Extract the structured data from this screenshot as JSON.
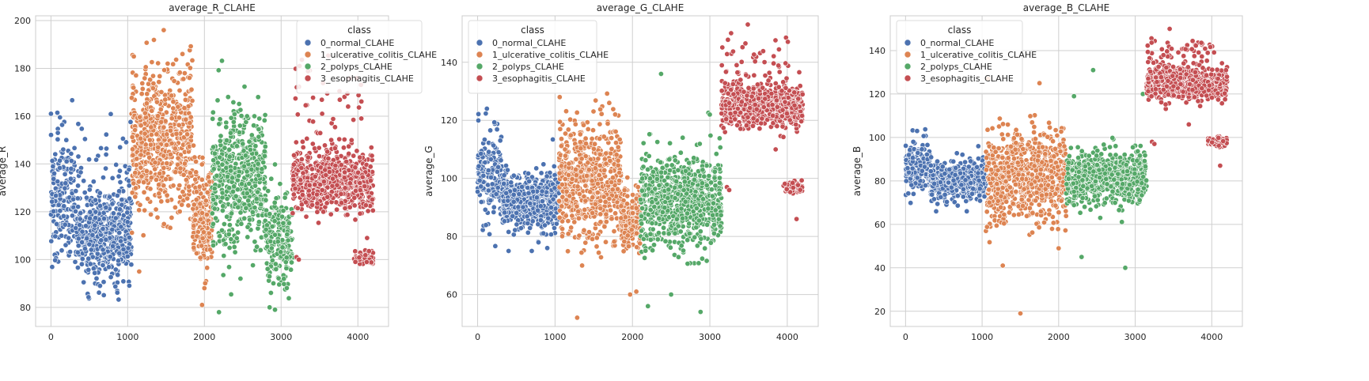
{
  "chart_data": [
    {
      "type": "scatter",
      "title": "average_R_CLAHE",
      "xlabel": "",
      "ylabel": "average_R",
      "xlim": [
        -200,
        4400
      ],
      "ylim": [
        72,
        202
      ],
      "xticks": [
        0,
        1000,
        2000,
        3000,
        4000
      ],
      "yticks": [
        80,
        100,
        120,
        140,
        160,
        180,
        200
      ],
      "grid": true,
      "legend": {
        "title": "class",
        "placement": "top-right"
      },
      "series": [
        {
          "name": "0_normal_CLAHE",
          "clusters": [
            {
              "x": [
                0,
                320
              ],
              "y_center": 125,
              "y_spread": 14,
              "count": 170
            },
            {
              "x": [
                320,
                1050
              ],
              "y_center": 110,
              "y_spread": 10,
              "count": 480
            },
            {
              "x": [
                320,
                1050
              ],
              "y_center": 130,
              "y_spread": 14,
              "count": 40
            }
          ],
          "outliers": [
            [
              0,
              161
            ],
            [
              90,
              153
            ],
            [
              200,
              150
            ],
            [
              640,
              89
            ],
            [
              900,
              147
            ]
          ]
        },
        {
          "name": "1_ulcerative_colitis_CLAHE",
          "clusters": [
            {
              "x": [
                1050,
                1850
              ],
              "y_center": 150,
              "y_spread": 15,
              "count": 600
            },
            {
              "x": [
                1850,
                2100
              ],
              "y_center": 118,
              "y_spread": 10,
              "count": 220
            }
          ],
          "outliers": [
            [
              1080,
              185
            ],
            [
              1470,
              196
            ],
            [
              1970,
              81
            ],
            [
              1150,
              95
            ],
            [
              2000,
              88
            ]
          ]
        },
        {
          "name": "2_polyps_CLAHE",
          "clusters": [
            {
              "x": [
                2100,
                2800
              ],
              "y_center": 133,
              "y_spread": 14,
              "count": 520
            },
            {
              "x": [
                2800,
                3150
              ],
              "y_center": 108,
              "y_spread": 10,
              "count": 200
            }
          ],
          "outliers": [
            [
              2190,
              78
            ],
            [
              2850,
              80
            ],
            [
              2920,
              79
            ],
            [
              2470,
              92
            ],
            [
              2700,
              168
            ]
          ]
        },
        {
          "name": "3_esophagitis_CLAHE",
          "clusters": [
            {
              "x": [
                3150,
                4200
              ],
              "y_center": 133,
              "y_spread": 6,
              "count": 650
            },
            {
              "x": [
                3150,
                4050
              ],
              "y_center": 160,
              "y_spread": 10,
              "count": 50
            },
            {
              "x": [
                3950,
                4200
              ],
              "y_center": 101,
              "y_spread": 1.5,
              "count": 60
            }
          ],
          "outliers": [
            [
              3200,
              101
            ],
            [
              3230,
              100
            ],
            [
              3550,
              120
            ],
            [
              4120,
              109
            ]
          ]
        }
      ]
    },
    {
      "type": "scatter",
      "title": "average_G_CLAHE",
      "xlabel": "",
      "ylabel": "average_G",
      "xlim": [
        -200,
        4400
      ],
      "ylim": [
        49,
        156
      ],
      "xticks": [
        0,
        1000,
        2000,
        3000,
        4000
      ],
      "yticks": [
        60,
        80,
        100,
        120,
        140
      ],
      "grid": true,
      "legend": {
        "title": "class",
        "placement": "top-left"
      },
      "series": [
        {
          "name": "0_normal_CLAHE",
          "clusters": [
            {
              "x": [
                0,
                320
              ],
              "y_center": 100,
              "y_spread": 8,
              "count": 170
            },
            {
              "x": [
                320,
                1050
              ],
              "y_center": 92,
              "y_spread": 5,
              "count": 480
            }
          ],
          "outliers": [
            [
              120,
              124
            ],
            [
              400,
              75
            ],
            [
              700,
              75
            ],
            [
              900,
              76
            ]
          ]
        },
        {
          "name": "1_ulcerative_colitis_CLAHE",
          "clusters": [
            {
              "x": [
                1050,
                1850
              ],
              "y_center": 100,
              "y_spread": 10,
              "count": 600
            },
            {
              "x": [
                1850,
                2100
              ],
              "y_center": 86,
              "y_spread": 5,
              "count": 220
            }
          ],
          "outliers": [
            [
              1060,
              128
            ],
            [
              1700,
              126
            ],
            [
              1970,
              60
            ],
            [
              2050,
              61
            ],
            [
              1350,
              70
            ]
          ]
        },
        {
          "name": "2_polyps_CLAHE",
          "clusters": [
            {
              "x": [
                2100,
                3150
              ],
              "y_center": 92,
              "y_spread": 8,
              "count": 720
            }
          ],
          "outliers": [
            [
              2370,
              136
            ],
            [
              2200,
              56
            ],
            [
              2880,
              54
            ],
            [
              2500,
              60
            ],
            [
              3000,
              122
            ]
          ]
        },
        {
          "name": "3_esophagitis_CLAHE",
          "clusters": [
            {
              "x": [
                3150,
                4200
              ],
              "y_center": 125,
              "y_spread": 3.5,
              "count": 650
            },
            {
              "x": [
                3150,
                4050
              ],
              "y_center": 138,
              "y_spread": 6,
              "count": 60
            },
            {
              "x": [
                3950,
                4200
              ],
              "y_center": 97,
              "y_spread": 1,
              "count": 60
            }
          ],
          "outliers": [
            [
              3490,
              153
            ],
            [
              3220,
              97
            ],
            [
              3250,
              96
            ],
            [
              4120,
              86
            ],
            [
              3850,
              110
            ]
          ]
        }
      ]
    },
    {
      "type": "scatter",
      "title": "average_B_CLAHE",
      "xlabel": "",
      "ylabel": "average_B",
      "xlim": [
        -200,
        4400
      ],
      "ylim": [
        13,
        156
      ],
      "xticks": [
        0,
        1000,
        2000,
        3000,
        4000
      ],
      "yticks": [
        20,
        40,
        60,
        80,
        100,
        120,
        140
      ],
      "grid": true,
      "legend": {
        "title": "class",
        "placement": "top-left"
      },
      "series": [
        {
          "name": "0_normal_CLAHE",
          "clusters": [
            {
              "x": [
                0,
                320
              ],
              "y_center": 87,
              "y_spread": 6,
              "count": 170
            },
            {
              "x": [
                320,
                1050
              ],
              "y_center": 80,
              "y_spread": 4,
              "count": 480
            }
          ],
          "outliers": [
            [
              150,
              103
            ],
            [
              400,
              66
            ],
            [
              800,
              66
            ],
            [
              950,
              96
            ]
          ]
        },
        {
          "name": "1_ulcerative_colitis_CLAHE",
          "clusters": [
            {
              "x": [
                1050,
                2100
              ],
              "y_center": 82,
              "y_spread": 10,
              "count": 800
            }
          ],
          "outliers": [
            [
              1500,
              19
            ],
            [
              1270,
              41
            ],
            [
              1080,
              127
            ],
            [
              1750,
              125
            ],
            [
              2000,
              49
            ]
          ]
        },
        {
          "name": "2_polyps_CLAHE",
          "clusters": [
            {
              "x": [
                2100,
                3150
              ],
              "y_center": 81,
              "y_spread": 6,
              "count": 720
            }
          ],
          "outliers": [
            [
              2870,
              40
            ],
            [
              2450,
              131
            ],
            [
              2300,
              45
            ],
            [
              3100,
              120
            ],
            [
              2200,
              119
            ]
          ]
        },
        {
          "name": "3_esophagitis_CLAHE",
          "clusters": [
            {
              "x": [
                3150,
                4200
              ],
              "y_center": 125,
              "y_spread": 3.5,
              "count": 650
            },
            {
              "x": [
                3150,
                4050
              ],
              "y_center": 138,
              "y_spread": 5,
              "count": 60
            },
            {
              "x": [
                3950,
                4200
              ],
              "y_center": 98,
              "y_spread": 1,
              "count": 60
            }
          ],
          "outliers": [
            [
              3450,
              150
            ],
            [
              3220,
              98
            ],
            [
              3250,
              97
            ],
            [
              4110,
              87
            ],
            [
              3700,
              106
            ]
          ]
        }
      ]
    }
  ],
  "colors": [
    "#4c72b0",
    "#dd8452",
    "#55a868",
    "#c44e52"
  ],
  "grid_color": "#cfcfcf",
  "axes_edge_color": "#cccccc"
}
